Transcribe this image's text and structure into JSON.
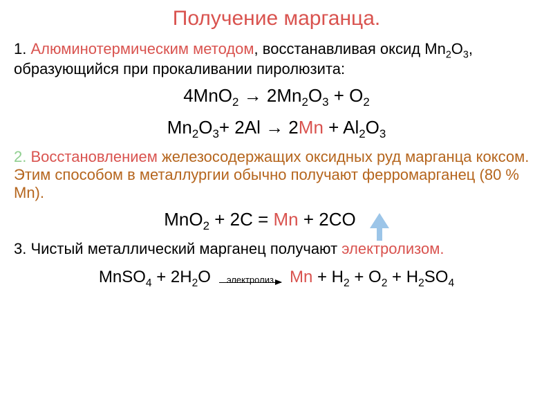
{
  "title": "Получение марганца.",
  "method1": {
    "num": "1.",
    "name": "Алюминотермическим методом",
    "desc": ", восстанавливая оксид Mn",
    "desc_sub": "2",
    "desc2": "O",
    "desc_sub2": "3",
    "desc3": ", образующийся при прокаливании пиролюзита:"
  },
  "eq1": {
    "lhs1": "4MnO",
    "lhs1_sub": "2",
    "arrow": "   →  ",
    "rhs1": "2Mn",
    "rhs1_sub": "2",
    "rhs2": "O",
    "rhs2_sub": "3",
    "plus": "  + O",
    "plus_sub": "2"
  },
  "eq2": {
    "l1": "Mn",
    "l1s": "2",
    "l2": "O",
    "l2s": "3",
    "l3": "+ 2Al   →   2",
    "mn": "Mn",
    "r1": "   +  Al",
    "r1s": "2",
    "r2": "O",
    "r2s": "3"
  },
  "method2": {
    "num": "2.",
    "name": "Восстановлением",
    "desc": " железосодержащих оксидных руд марганца коксом. Этим способом в металлургии обычно получают ферромарганец (80 % Mn)."
  },
  "eq3": {
    "l1": "MnO",
    "l1s": "2",
    "l2": "  +  2C  =  ",
    "mn": "Mn",
    "r1": "  +  2CO"
  },
  "method3": {
    "num": "3. ",
    "desc1": "Чистый металлический марганец получают ",
    "name": "электролизом."
  },
  "eq4": {
    "l1": "MnSO",
    "l1s": "4",
    "l2": " + 2H",
    "l2s": "2",
    "l3": "O",
    "arrow_label": "электролиз",
    "mn": "Mn",
    "r1": " + H",
    "r1s": "2",
    "r2": " + O",
    "r2s": "2",
    "r3": " + H",
    "r3s": "2",
    "r4": "SO",
    "r4s": "4"
  }
}
